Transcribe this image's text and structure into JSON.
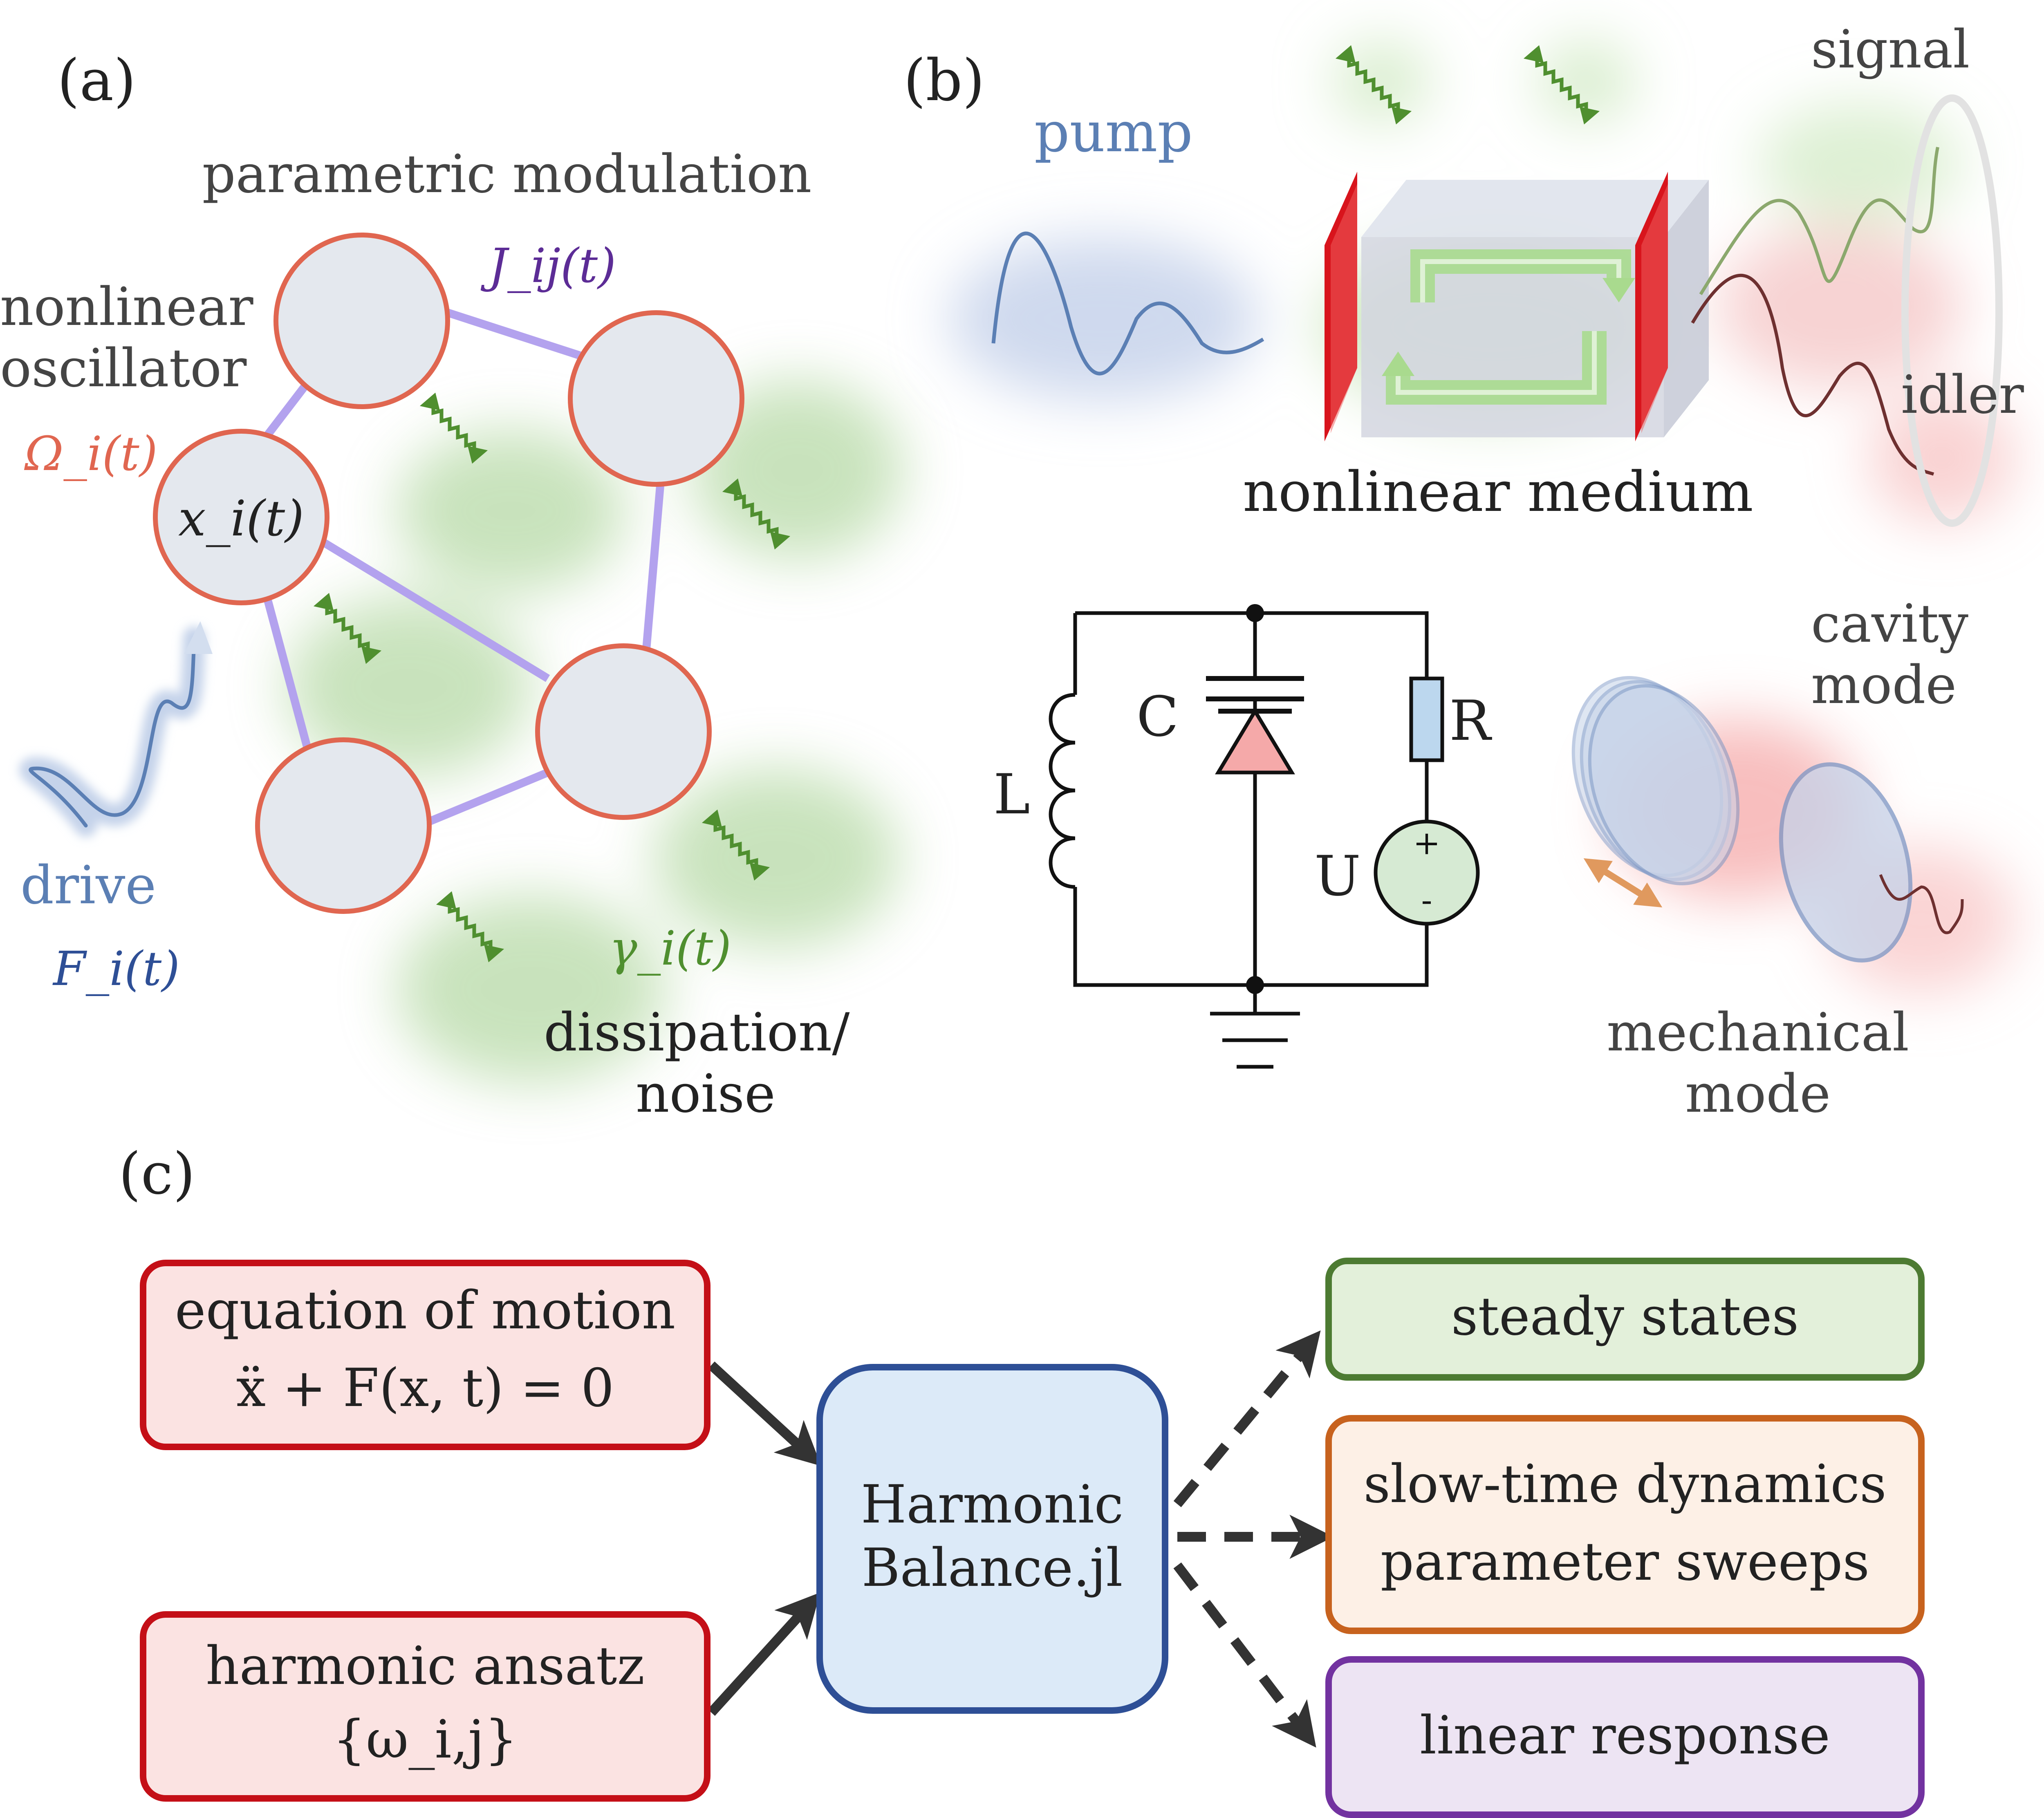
{
  "panels": {
    "a": "(a)",
    "b": "(b)",
    "c": "(c)"
  },
  "panel_a": {
    "modulation_label": "parametric modulation",
    "coupling_label": "J_ij(t)",
    "oscillator_label_1": "nonlinear",
    "oscillator_label_2": "oscillator",
    "frequency_label": "Ω_i(t)",
    "node_label": "x_i(t)",
    "drive_label": "drive",
    "force_label": "F_i(t)",
    "damping_label": "γ_i(t)",
    "dissipation_label_1": "dissipation/",
    "dissipation_label_2": "noise"
  },
  "panel_b": {
    "pump_label": "pump",
    "signal_label": "signal",
    "idler_label": "idler",
    "medium_label": "nonlinear medium",
    "circuit": {
      "inductor": "L",
      "capacitor": "C",
      "resistor": "R",
      "source": "U",
      "plus": "+",
      "minus": "-"
    },
    "cavity_label_1": "cavity",
    "cavity_label_2": "mode",
    "mechanical_label_1": "mechanical",
    "mechanical_label_2": "mode"
  },
  "panel_c": {
    "input_eom_line1": "equation of motion",
    "input_eom_line2": "ẍ + F(x, t) = 0",
    "input_ansatz_line1": "harmonic ansatz",
    "input_ansatz_line2": "{ω_i,j}",
    "center_line1": "Harmonic",
    "center_line2": "Balance.jl",
    "output_1": "steady states",
    "output_2_line1": "slow-time dynamics",
    "output_2_line2": "parameter sweeps",
    "output_3": "linear response"
  },
  "colors": {
    "node_stroke": "#e06650",
    "node_fill": "#e4e8ee",
    "coupling": "#b3a2ee",
    "noise_green": "#4f8f2f",
    "drive_blue": "#5b7fb4",
    "red_box_stroke": "#c40f17",
    "red_box_fill": "#fbe3e2",
    "blue_box_stroke": "#2e4f96",
    "blue_box_fill": "#dceaf8",
    "green_box_stroke": "#4d7b32",
    "green_box_fill": "#e3f0da",
    "orange_box_stroke": "#c7621e",
    "orange_box_fill": "#fdf0e6",
    "purple_box_stroke": "#7232a0",
    "purple_box_fill": "#ede4f3"
  }
}
